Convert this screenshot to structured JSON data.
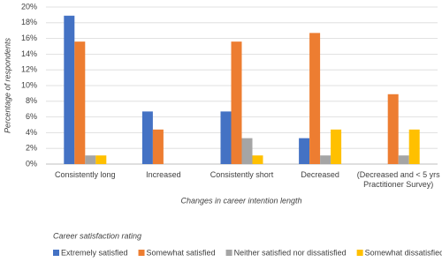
{
  "chart_data": {
    "type": "bar",
    "y_axis_label": "Percentage of respondents",
    "x_axis_label": "Changes in career intention length",
    "legend_title": "Career satisfaction rating",
    "categories": [
      "Consistently long",
      "Increased",
      "Consistently short",
      "Decreased",
      "(Decreased and < 5 yrs Practitioner Survey)"
    ],
    "series": [
      {
        "name": "Extremely satisfied",
        "color": "#4472c4",
        "values": [
          18.9,
          6.7,
          6.7,
          3.3,
          0
        ]
      },
      {
        "name": "Somewhat satisfied",
        "color": "#ed7d31",
        "values": [
          15.6,
          4.4,
          15.6,
          16.7,
          8.9
        ]
      },
      {
        "name": "Neither satisfied nor dissatisfied",
        "color": "#a5a5a5",
        "values": [
          1.1,
          0,
          3.3,
          1.1,
          1.1
        ]
      },
      {
        "name": "Somewhat dissatisfied",
        "color": "#ffc000",
        "values": [
          1.1,
          0,
          1.1,
          4.4,
          4.4
        ]
      }
    ],
    "ylim": [
      0,
      20
    ],
    "yticks": [
      {
        "value": 0,
        "label": "0%"
      },
      {
        "value": 2,
        "label": "2%"
      },
      {
        "value": 4,
        "label": "4%"
      },
      {
        "value": 6,
        "label": "6%"
      },
      {
        "value": 8,
        "label": "8%"
      },
      {
        "value": 10,
        "label": "10%"
      },
      {
        "value": 12,
        "label": "12%"
      },
      {
        "value": 14,
        "label": "14%"
      },
      {
        "value": 16,
        "label": "16%"
      },
      {
        "value": 18,
        "label": "18%"
      },
      {
        "value": 20,
        "label": "20%"
      }
    ],
    "grid": true
  }
}
